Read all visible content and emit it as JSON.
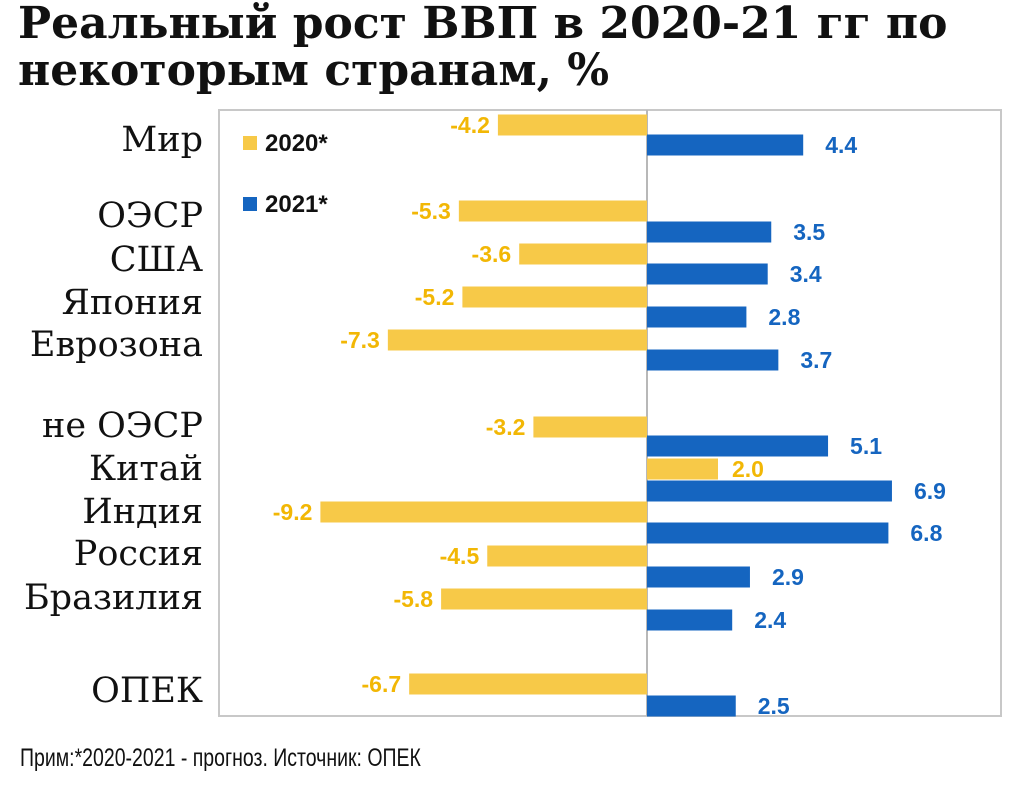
{
  "title_lines": [
    "Реальный рост ВВП в 2020-21 гг по",
    "некоторым странам, %"
  ],
  "footnote": "Прим:*2020-2021 - прогноз. Источник: ОПЕК",
  "colors": {
    "series_2020": "#f7c948",
    "series_2021": "#1565c0",
    "axis": "#b8b8b8"
  },
  "chart_data": {
    "type": "bar",
    "orientation": "horizontal",
    "categories": [
      "Мир",
      "ОЭСР",
      "США",
      "Япония",
      "Еврозона",
      "не ОЭСР",
      "Китай",
      "Индия",
      "Россия",
      "Бразилия",
      "ОПЕК"
    ],
    "series": [
      {
        "name": "2020*",
        "values": [
          -4.2,
          -5.3,
          -3.6,
          -5.2,
          -7.3,
          -3.2,
          2.0,
          -9.2,
          -4.5,
          -5.8,
          -6.7
        ]
      },
      {
        "name": "2021*",
        "values": [
          4.4,
          3.5,
          3.4,
          2.8,
          3.7,
          5.1,
          6.9,
          6.8,
          2.9,
          2.4,
          2.5
        ]
      }
    ],
    "value_labels": {
      "2020*": [
        "-4.2",
        "-5.3",
        "-3.6",
        "-5.2",
        "-7.3",
        "-3.2",
        "2.0",
        "-9.2",
        "-4.5",
        "-5.8",
        "-6.7"
      ],
      "2021*": [
        "4.4",
        "3.5",
        "3.4",
        "2.8",
        "3.7",
        "5.1",
        "6.9",
        "6.8",
        "2.9",
        "2.4",
        "2.5"
      ]
    },
    "xlim": [
      -9.2,
      6.9
    ],
    "legend_position": "top-left",
    "grid": false
  }
}
